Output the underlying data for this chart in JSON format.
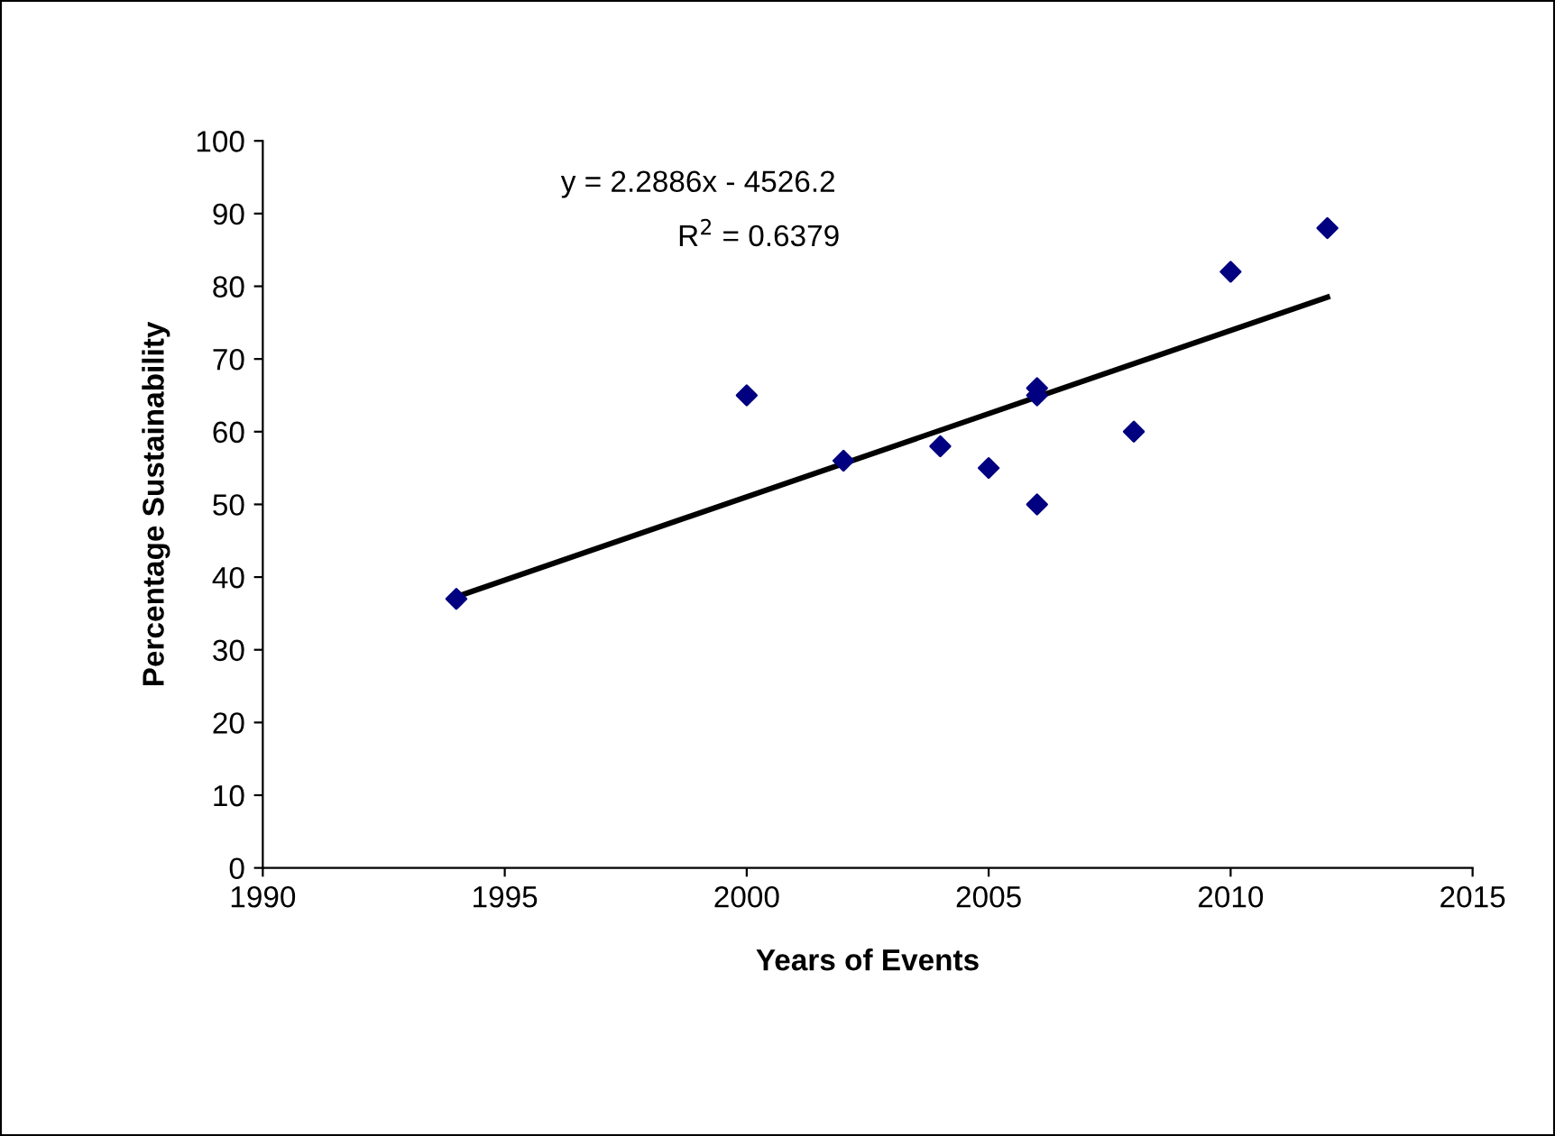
{
  "chart_data": {
    "type": "scatter",
    "xlabel": "Years of Events",
    "ylabel": "Percentage Sustainability",
    "x": [
      1994,
      2000,
      2002,
      2004,
      2005,
      2006,
      2006,
      2006,
      2008,
      2010,
      2012
    ],
    "series": [
      {
        "color": "#000080",
        "values": [
          37,
          65,
          56,
          58,
          55,
          66,
          65,
          50,
          60,
          82,
          88
        ],
        "marker": "diamond"
      },
      {
        "type": "line",
        "color": "#000000",
        "x": [
          1994,
          2012
        ],
        "values": [
          37.3,
          78.5
        ],
        "marker": "none",
        "line_style": "solid"
      }
    ],
    "annotations": [
      "y = 2.2886x - 4526.2",
      "R$^{2}$ = 0.6379"
    ],
    "xlim": [
      1990,
      2015
    ],
    "xticks": [
      1990,
      1995,
      2000,
      2005,
      2010,
      2015
    ],
    "ylim": [
      0,
      100
    ],
    "yticks": [
      0,
      10,
      20,
      30,
      40,
      50,
      60,
      70,
      80,
      90,
      100
    ],
    "grid": false,
    "legend": false
  }
}
